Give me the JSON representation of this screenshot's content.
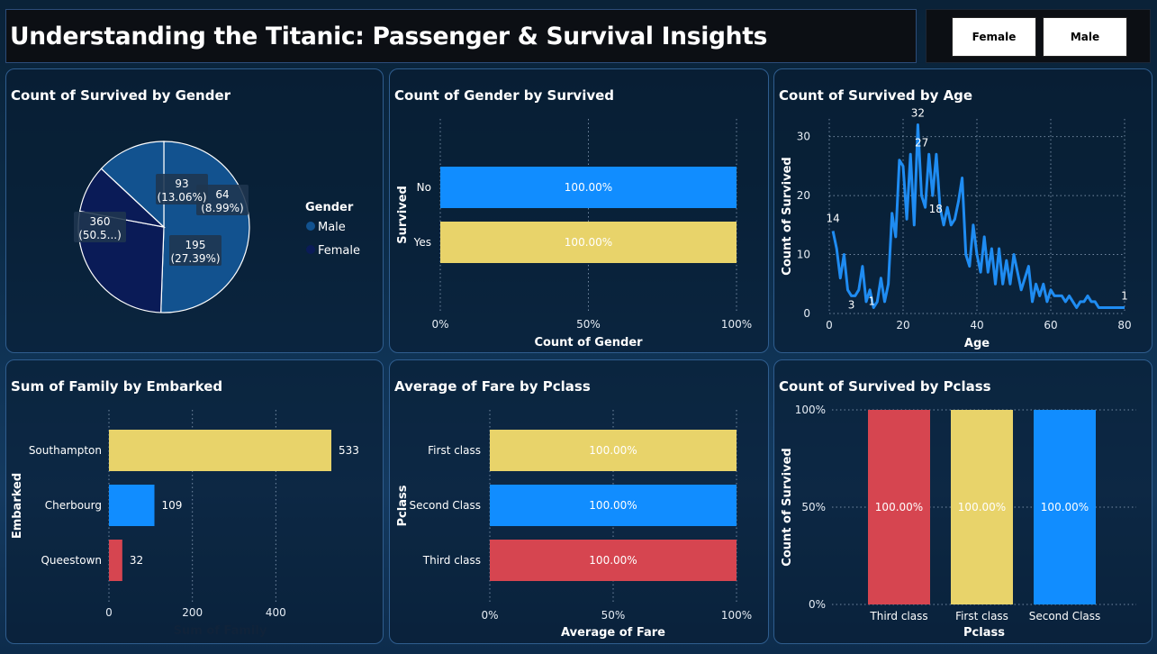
{
  "header": {
    "title": "Understanding the Titanic: Passenger & Survival Insights"
  },
  "slicer": {
    "options": [
      "Female",
      "Male"
    ]
  },
  "colors": {
    "yellow": "#e8d36a",
    "blue": "#118dff",
    "red": "#d64550",
    "pie_male": "#12528f",
    "pie_female": "#0a1b57",
    "line": "#1f8cf2"
  },
  "chart_data": [
    {
      "id": "pie",
      "type": "pie",
      "title": "Count of Survived by Gender",
      "legend": {
        "title": "Gender",
        "entries": [
          "Male",
          "Female"
        ],
        "position": "right"
      },
      "slices": [
        {
          "category": "Male",
          "value": 360,
          "label": "360",
          "pct": "(50.5...)"
        },
        {
          "category": "Female",
          "value": 195,
          "label": "195",
          "pct": "(27.39%)"
        },
        {
          "category": "Female",
          "value": 64,
          "label": "64",
          "pct": "(8.99%)"
        },
        {
          "category": "Male",
          "value": 93,
          "label": "93",
          "pct": "(13.06%)"
        }
      ]
    },
    {
      "id": "gender_survived",
      "type": "bar",
      "orientation": "horizontal",
      "title": "Count of Gender by Survived",
      "xlabel": "Count of Gender",
      "ylabel": "Survived",
      "categories": [
        "No",
        "Yes"
      ],
      "values": [
        100,
        100
      ],
      "labels": [
        "100.00%",
        "100.00%"
      ],
      "colors": [
        "#118dff",
        "#e8d36a"
      ],
      "xticks": [
        "0%",
        "50%",
        "100%"
      ],
      "xlim": [
        0,
        100
      ]
    },
    {
      "id": "age",
      "type": "line",
      "title": "Count of Survived by Age",
      "xlabel": "Age",
      "ylabel": "Count of Survived",
      "xlim": [
        0,
        80
      ],
      "ylim": [
        0,
        33
      ],
      "xticks": [
        0,
        20,
        40,
        60,
        80
      ],
      "yticks": [
        0,
        10,
        20,
        30
      ],
      "points": [
        [
          1,
          14
        ],
        [
          2,
          11
        ],
        [
          3,
          6
        ],
        [
          4,
          10
        ],
        [
          5,
          4
        ],
        [
          6,
          3
        ],
        [
          7,
          3
        ],
        [
          8,
          4
        ],
        [
          9,
          8
        ],
        [
          10,
          2
        ],
        [
          11,
          4
        ],
        [
          12,
          1
        ],
        [
          13,
          2
        ],
        [
          14,
          6
        ],
        [
          15,
          2
        ],
        [
          16,
          5
        ],
        [
          17,
          17
        ],
        [
          18,
          13
        ],
        [
          19,
          26
        ],
        [
          20,
          25
        ],
        [
          21,
          16
        ],
        [
          22,
          27
        ],
        [
          23,
          15
        ],
        [
          24,
          32
        ],
        [
          25,
          20
        ],
        [
          26,
          18
        ],
        [
          27,
          27
        ],
        [
          28,
          20
        ],
        [
          29,
          27
        ],
        [
          30,
          18
        ],
        [
          31,
          15
        ],
        [
          32,
          18
        ],
        [
          33,
          15
        ],
        [
          34,
          16
        ],
        [
          35,
          19
        ],
        [
          36,
          23
        ],
        [
          37,
          10
        ],
        [
          38,
          8
        ],
        [
          39,
          15
        ],
        [
          40,
          10
        ],
        [
          41,
          7
        ],
        [
          42,
          13
        ],
        [
          43,
          7
        ],
        [
          44,
          11
        ],
        [
          45,
          5
        ],
        [
          46,
          11
        ],
        [
          47,
          5
        ],
        [
          48,
          9
        ],
        [
          49,
          5
        ],
        [
          50,
          10
        ],
        [
          51,
          7
        ],
        [
          52,
          4
        ],
        [
          53,
          6
        ],
        [
          54,
          8
        ],
        [
          55,
          2
        ],
        [
          56,
          5
        ],
        [
          57,
          3
        ],
        [
          58,
          5
        ],
        [
          59,
          2
        ],
        [
          60,
          4
        ],
        [
          61,
          3
        ],
        [
          62,
          3
        ],
        [
          63,
          3
        ],
        [
          64,
          2
        ],
        [
          65,
          3
        ],
        [
          66,
          2
        ],
        [
          67,
          1
        ],
        [
          68,
          2
        ],
        [
          69,
          2
        ],
        [
          70,
          3
        ],
        [
          71,
          2
        ],
        [
          72,
          2
        ],
        [
          73,
          1
        ],
        [
          74,
          1
        ],
        [
          75,
          1
        ],
        [
          76,
          1
        ],
        [
          77,
          1
        ],
        [
          78,
          1
        ],
        [
          79,
          1
        ],
        [
          80,
          1
        ]
      ],
      "annotations": [
        {
          "x": 1,
          "y": 14,
          "text": "14"
        },
        {
          "x": 6,
          "y": 3,
          "text": "3"
        },
        {
          "x": 12,
          "y": 1,
          "text": "1"
        },
        {
          "x": 24,
          "y": 32,
          "text": "32"
        },
        {
          "x": 26,
          "y": 18,
          "text": "18"
        },
        {
          "x": 27,
          "y": 27,
          "text": "27"
        },
        {
          "x": 80,
          "y": 1,
          "text": "1"
        }
      ]
    },
    {
      "id": "family_embarked",
      "type": "bar",
      "orientation": "horizontal",
      "title": "Sum of Family by Embarked",
      "xlabel": "Sum of Family",
      "ylabel": "Embarked",
      "categories": [
        "Southampton",
        "Cherbourg",
        "Queestown"
      ],
      "values": [
        533,
        109,
        32
      ],
      "labels": [
        "533",
        "109",
        "32"
      ],
      "colors": [
        "#e8d36a",
        "#118dff",
        "#d64550"
      ],
      "xticks": [
        0,
        200,
        400
      ],
      "xlim": [
        0,
        533
      ]
    },
    {
      "id": "fare_pclass",
      "type": "bar",
      "orientation": "horizontal",
      "title": "Average of Fare by Pclass",
      "xlabel": "Average of Fare",
      "ylabel": "Pclass",
      "categories": [
        "First class",
        "Second Class",
        "Third class"
      ],
      "values": [
        100,
        100,
        100
      ],
      "labels": [
        "100.00%",
        "100.00%",
        "100.00%"
      ],
      "colors": [
        "#e8d36a",
        "#118dff",
        "#d64550"
      ],
      "xticks": [
        "0%",
        "50%",
        "100%"
      ],
      "xlim": [
        0,
        100
      ]
    },
    {
      "id": "survived_pclass",
      "type": "bar",
      "orientation": "vertical",
      "title": "Count of Survived by Pclass",
      "xlabel": "Pclass",
      "ylabel": "Count of Survived",
      "categories": [
        "Third class",
        "First class",
        "Second Class"
      ],
      "values": [
        100,
        100,
        100
      ],
      "labels": [
        "100.00%",
        "100.00%",
        "100.00%"
      ],
      "colors": [
        "#d64550",
        "#e8d36a",
        "#118dff"
      ],
      "yticks": [
        "0%",
        "50%",
        "100%"
      ],
      "ylim": [
        0,
        100
      ]
    }
  ]
}
